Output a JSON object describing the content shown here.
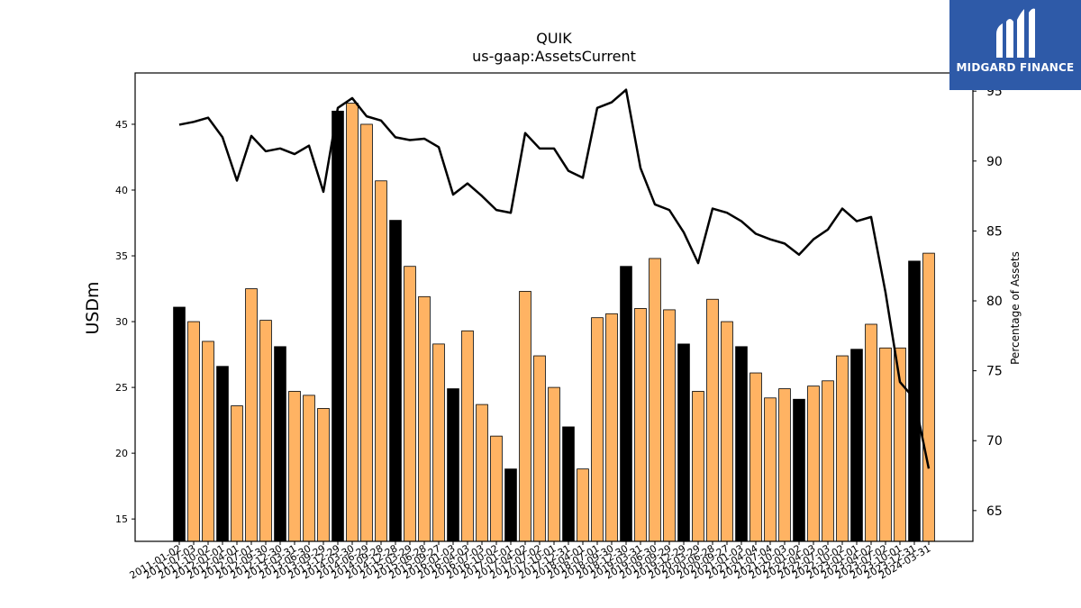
{
  "brand": {
    "name": "MIDGARD FINANCE",
    "color": "#2e5aa8"
  },
  "chart_data": {
    "type": "bar",
    "title": "QUIK",
    "subtitle": "us-gaap:AssetsCurrent",
    "ylabel": "USDm",
    "y2label": "Percentage of Assets",
    "ylim": [
      13.3,
      48.9
    ],
    "y2lim": [
      62.8,
      96.3
    ],
    "yticks": [
      15,
      20,
      25,
      30,
      35,
      40,
      45
    ],
    "y2ticks": [
      65,
      70,
      75,
      80,
      85,
      90,
      95
    ],
    "colors": {
      "year_end_bar": "#000000",
      "quarter_bar": "#ffb363",
      "line": "#000000"
    },
    "categories": [
      "2011-01-02",
      "2011-07-03",
      "2011-10-02",
      "2012-01-01",
      "2012-04-01",
      "2012-07-01",
      "2012-09-30",
      "2012-12-30",
      "2013-03-31",
      "2013-06-30",
      "2013-09-29",
      "2013-12-29",
      "2014-03-30",
      "2014-06-29",
      "2014-09-28",
      "2014-12-28",
      "2015-03-29",
      "2015-06-28",
      "2015-09-27",
      "2016-01-03",
      "2016-04-03",
      "2016-07-03",
      "2016-10-02",
      "2017-01-01",
      "2017-04-02",
      "2017-07-02",
      "2017-10-01",
      "2017-12-31",
      "2018-04-01",
      "2018-07-01",
      "2018-09-30",
      "2018-12-30",
      "2019-03-31",
      "2019-06-30",
      "2019-09-29",
      "2019-12-29",
      "2020-03-29",
      "2020-06-28",
      "2020-09-27",
      "2021-01-03",
      "2021-04-04",
      "2021-07-04",
      "2021-10-03",
      "2022-01-02",
      "2022-04-03",
      "2022-07-03",
      "2022-10-02",
      "2023-01-01",
      "2023-04-02",
      "2023-07-02",
      "2023-10-01",
      "2023-12-31",
      "2024-03-31"
    ],
    "series": [
      {
        "kind": "bar",
        "values": [
          31.1,
          30.0,
          28.5,
          26.6,
          23.6,
          32.5,
          30.1,
          28.1,
          24.7,
          24.4,
          23.4,
          46.0,
          46.6,
          45.0,
          40.7,
          37.7,
          34.2,
          31.9,
          28.3,
          24.9,
          29.3,
          23.7,
          21.3,
          18.8,
          32.3,
          27.4,
          25.0,
          22.0,
          18.8,
          30.3,
          30.6,
          34.2,
          31.0,
          34.8,
          30.9,
          28.3,
          24.7,
          31.7,
          30.0,
          28.1,
          26.1,
          24.2,
          24.9,
          24.1,
          25.1,
          25.5,
          27.4,
          27.9,
          29.8,
          28.0,
          28.0,
          34.6,
          35.2
        ],
        "year_end": [
          true,
          false,
          false,
          true,
          false,
          false,
          false,
          true,
          false,
          false,
          false,
          true,
          false,
          false,
          false,
          true,
          false,
          false,
          false,
          true,
          false,
          false,
          false,
          true,
          false,
          false,
          false,
          true,
          false,
          false,
          false,
          true,
          false,
          false,
          false,
          true,
          false,
          false,
          false,
          true,
          false,
          false,
          false,
          true,
          false,
          false,
          false,
          true,
          false,
          false,
          false,
          true,
          false
        ]
      },
      {
        "kind": "line",
        "axis": "right",
        "values": [
          92.6,
          92.8,
          93.1,
          91.7,
          88.6,
          91.8,
          90.7,
          90.9,
          90.5,
          91.1,
          87.8,
          93.8,
          94.5,
          93.2,
          92.9,
          91.7,
          91.5,
          91.6,
          91.0,
          87.6,
          88.4,
          87.5,
          86.5,
          86.3,
          92.0,
          90.9,
          90.9,
          89.3,
          88.8,
          93.8,
          94.2,
          95.1,
          89.5,
          86.9,
          86.5,
          84.9,
          82.7,
          86.6,
          86.3,
          85.7,
          84.8,
          84.4,
          84.1,
          83.3,
          84.4,
          85.1,
          86.6,
          85.7,
          86.0,
          80.6,
          74.2,
          73.0,
          68.0
        ]
      }
    ]
  }
}
